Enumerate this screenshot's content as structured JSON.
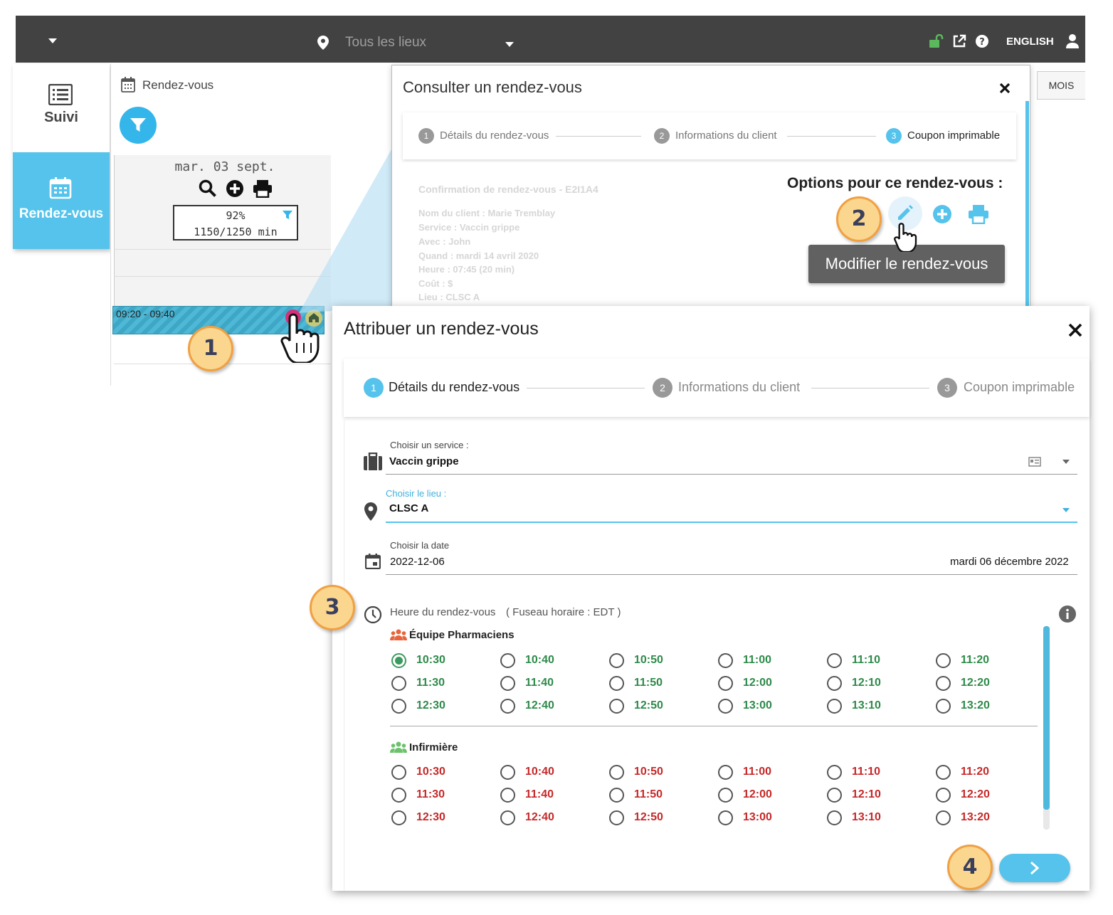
{
  "topbar": {
    "location_label": "Tous les lieux",
    "language": "ENGLISH"
  },
  "leftnav": {
    "items": [
      {
        "label": "Suivi",
        "icon": "list-icon"
      },
      {
        "label": "Rendez-vous",
        "icon": "calendar-icon",
        "active": true
      }
    ]
  },
  "calendar": {
    "title": "Rendez-vous",
    "day_label": "mar. 03 sept.",
    "percent": "92%",
    "minutes": "1150/1250 min",
    "appointment_time": "09:20 - 09:40",
    "view_button": "MOIS"
  },
  "consult_dialog": {
    "title": "Consulter un rendez-vous",
    "steps": [
      {
        "num": "1",
        "label": "Détails du rendez-vous"
      },
      {
        "num": "2",
        "label": "Informations du client"
      },
      {
        "num": "3",
        "label": "Coupon imprimable"
      }
    ],
    "confirmation": "Confirmation de rendez-vous - E2I1A4",
    "details": [
      "Nom du client : Marie Tremblay",
      "Service : Vaccin grippe",
      "Avec : John",
      "Quand : mardi 14 avril 2020",
      "Heure : 07:45 (20 min)",
      "Coût : $",
      "Lieu : CLSC A"
    ],
    "options_title": "Options pour ce rendez-vous :",
    "tooltip": "Modifier le rendez-vous"
  },
  "assign_dialog": {
    "title": "Attribuer un rendez-vous",
    "steps": [
      {
        "num": "1",
        "label": "Détails du rendez-vous"
      },
      {
        "num": "2",
        "label": "Informations du client"
      },
      {
        "num": "3",
        "label": "Coupon imprimable"
      }
    ],
    "service_label": "Choisir un service :",
    "service_value": "Vaccin grippe",
    "location_label": "Choisir le lieu :",
    "location_value": "CLSC A",
    "date_label": "Choisir la date",
    "date_value": "2022-12-06",
    "date_long": "mardi 06 décembre 2022",
    "time_label": "Heure du rendez-vous",
    "timezone": "( Fuseau horaire : EDT )",
    "groups": [
      {
        "name": "Équipe Pharmaciens",
        "status": "available",
        "slots": [
          "10:30",
          "10:40",
          "10:50",
          "11:00",
          "11:10",
          "11:20",
          "11:30",
          "11:40",
          "11:50",
          "12:00",
          "12:10",
          "12:20",
          "12:30",
          "12:40",
          "12:50",
          "13:00",
          "13:10",
          "13:20"
        ],
        "selected": "10:30"
      },
      {
        "name": "Infirmière",
        "status": "unavailable",
        "slots": [
          "10:30",
          "10:40",
          "10:50",
          "11:00",
          "11:10",
          "11:20",
          "11:30",
          "11:40",
          "11:50",
          "12:00",
          "12:10",
          "12:20",
          "12:30",
          "12:40",
          "12:50",
          "13:00",
          "13:10",
          "13:20"
        ],
        "selected": null
      }
    ]
  },
  "callouts": [
    "1",
    "2",
    "3",
    "4"
  ],
  "colors": {
    "accent": "#55c3eb",
    "available": "#2e8a4a",
    "unavailable": "#c62828",
    "callout_fill": "#fbd68e",
    "callout_border": "#f0a042",
    "topbar": "#424242"
  }
}
